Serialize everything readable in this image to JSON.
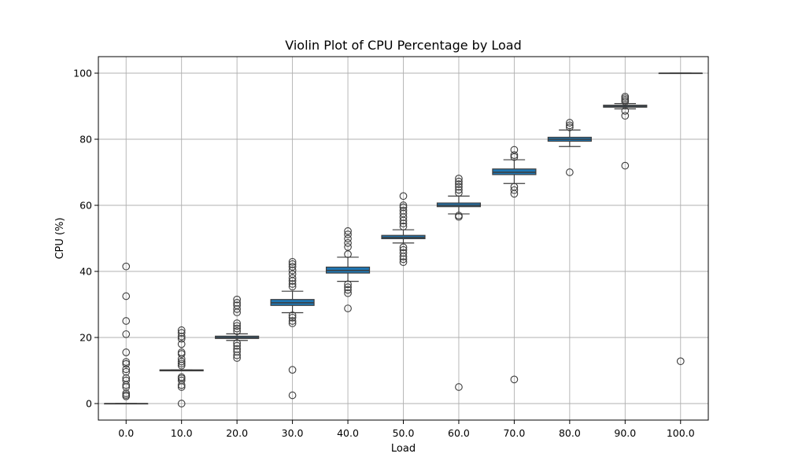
{
  "chart_data": {
    "type": "box",
    "title": "Violin Plot of CPU Percentage by Load",
    "xlabel": "Load",
    "ylabel": "CPU (%)",
    "ylim": [
      -5,
      105
    ],
    "yticks": [
      0,
      20,
      40,
      60,
      80,
      100
    ],
    "grid": true,
    "box_color": "#1f77b4",
    "line_color": "#3d3d3d",
    "categories": [
      "0.0",
      "10.0",
      "20.0",
      "30.0",
      "40.0",
      "50.0",
      "60.0",
      "70.0",
      "80.0",
      "90.0",
      "100.0"
    ],
    "groups": [
      {
        "category": "0.0",
        "q1": 0,
        "median": 0,
        "q3": 0,
        "whisker_low": 0,
        "whisker_high": 0,
        "outliers": [
          2.2,
          2.6,
          3.1,
          5.0,
          5.6,
          7.0,
          7.7,
          9.6,
          10.4,
          12.0,
          12.6,
          15.5,
          21.0,
          25.0,
          32.5,
          41.5
        ]
      },
      {
        "category": "10.0",
        "q1": 9.9,
        "median": 10,
        "q3": 10.2,
        "whisker_low": 9.9,
        "whisker_high": 10.2,
        "outliers": [
          0,
          5.0,
          5.6,
          7.0,
          7.6,
          8.0,
          11.5,
          12.1,
          12.7,
          13.5,
          15.0,
          15.5,
          18.0,
          19.6,
          20.3,
          21.4,
          22.2
        ]
      },
      {
        "category": "20.0",
        "q1": 19.7,
        "median": 20,
        "q3": 20.4,
        "whisker_low": 19.1,
        "whisker_high": 21.1,
        "outliers": [
          13.8,
          14.6,
          15.7,
          16.5,
          17.5,
          18.3,
          21.9,
          22.7,
          23.5,
          24.3,
          27.6,
          28.6,
          29.7,
          30.5,
          31.5
        ]
      },
      {
        "category": "30.0",
        "q1": 29.7,
        "median": 30.5,
        "q3": 31.5,
        "whisker_low": 27.5,
        "whisker_high": 34.0,
        "outliers": [
          2.5,
          10.2,
          24.3,
          25.0,
          26.0,
          26.7,
          35.4,
          36.2,
          37.1,
          38.0,
          39.2,
          40.3,
          41.4,
          42.2,
          42.9
        ]
      },
      {
        "category": "40.0",
        "q1": 39.5,
        "median": 40.3,
        "q3": 41.3,
        "whisker_low": 37.0,
        "whisker_high": 44.3,
        "outliers": [
          28.8,
          33.4,
          34.4,
          35.2,
          36.1,
          45.2,
          47.4,
          48.6,
          49.9,
          51.2,
          52.2
        ]
      },
      {
        "category": "50.0",
        "q1": 49.9,
        "median": 50.3,
        "q3": 50.9,
        "whisker_low": 48.6,
        "whisker_high": 52.6,
        "outliers": [
          42.8,
          43.7,
          44.5,
          45.6,
          46.5,
          47.3,
          53.6,
          54.5,
          55.4,
          56.4,
          57.5,
          58.4,
          59.4,
          60.0,
          62.8
        ]
      },
      {
        "category": "60.0",
        "q1": 59.6,
        "median": 60,
        "q3": 60.7,
        "whisker_low": 57.4,
        "whisker_high": 62.8,
        "outliers": [
          5.0,
          56.5,
          56.9,
          63.8,
          64.7,
          65.6,
          66.4,
          67.2,
          68.1
        ]
      },
      {
        "category": "70.0",
        "q1": 69.3,
        "median": 70,
        "q3": 71.0,
        "whisker_low": 66.6,
        "whisker_high": 73.8,
        "outliers": [
          7.3,
          63.5,
          64.6,
          65.6,
          74.6,
          75.2,
          76.8
        ]
      },
      {
        "category": "80.0",
        "q1": 79.4,
        "median": 80,
        "q3": 80.6,
        "whisker_low": 77.8,
        "whisker_high": 82.8,
        "outliers": [
          70.0,
          83.6,
          84.2,
          85.0
        ]
      },
      {
        "category": "90.0",
        "q1": 89.7,
        "median": 90,
        "q3": 90.3,
        "whisker_low": 89.2,
        "whisker_high": 90.8,
        "outliers": [
          72.0,
          87.1,
          88.6,
          91.4,
          91.9,
          92.4,
          92.9
        ]
      },
      {
        "category": "100.0",
        "q1": 100,
        "median": 100,
        "q3": 100,
        "whisker_low": 100,
        "whisker_high": 100,
        "outliers": [
          12.8
        ]
      }
    ]
  }
}
